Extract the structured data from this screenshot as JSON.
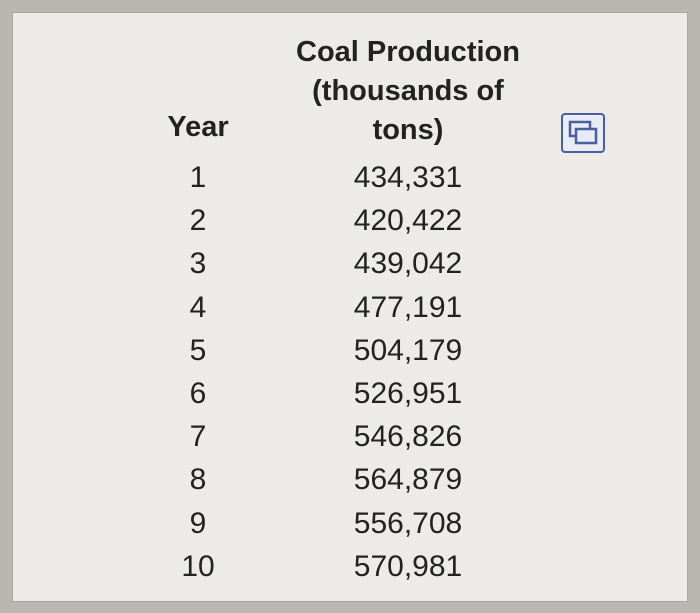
{
  "table": {
    "header_year": "Year",
    "header_production_lines": [
      "Coal Production",
      "(thousands of",
      "tons)"
    ],
    "rows": [
      {
        "year": "1",
        "value": "434,331"
      },
      {
        "year": "2",
        "value": "420,422"
      },
      {
        "year": "3",
        "value": "439,042"
      },
      {
        "year": "4",
        "value": "477,191"
      },
      {
        "year": "5",
        "value": "504,179"
      },
      {
        "year": "6",
        "value": "526,951"
      },
      {
        "year": "7",
        "value": "546,826"
      },
      {
        "year": "8",
        "value": "564,879"
      },
      {
        "year": "9",
        "value": "556,708"
      },
      {
        "year": "10",
        "value": "570,981"
      }
    ]
  },
  "icons": {
    "copy": "copy-data-icon"
  },
  "colors": {
    "icon_accent": "#4a5fa0"
  }
}
